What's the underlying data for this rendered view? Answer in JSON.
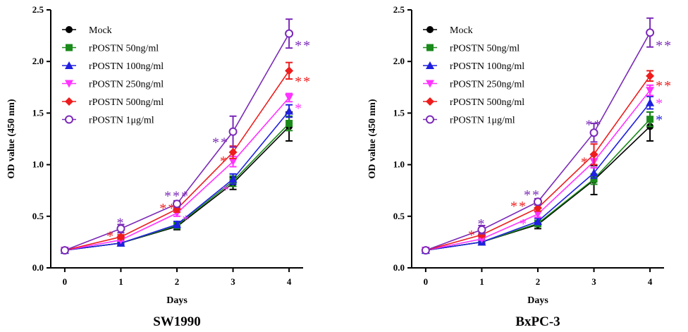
{
  "chart_data": [
    {
      "type": "line",
      "title": "SW1990",
      "xlabel": "Days",
      "ylabel": "OD value (450 nm)",
      "x": [
        0,
        1,
        2,
        3,
        4
      ],
      "xlim": [
        -0.25,
        4.25
      ],
      "ylim": [
        0,
        2.5
      ],
      "yticks": [
        0.0,
        0.5,
        1.0,
        1.5,
        2.0,
        2.5
      ],
      "ytick_labels": [
        "0.0",
        "0.5",
        "1.0",
        "1.5",
        "2.0",
        "2.5"
      ],
      "xtick_labels": [
        "0",
        "1",
        "2",
        "3",
        "4"
      ],
      "legend_position": "top-left",
      "series": [
        {
          "name": "Mock",
          "color": "#000000",
          "marker": "circle-filled",
          "values": [
            0.17,
            0.24,
            0.4,
            0.82,
            1.37
          ],
          "error": [
            0.01,
            0.01,
            0.03,
            0.06,
            0.14
          ]
        },
        {
          "name": "rPOSTN 50ng/ml",
          "color": "#1a8a1a",
          "marker": "square",
          "values": [
            0.17,
            0.24,
            0.41,
            0.84,
            1.4
          ],
          "error": [
            0.01,
            0.01,
            0.03,
            0.05,
            0.07
          ]
        },
        {
          "name": "rPOSTN 100ng/ml",
          "color": "#1f1fe0",
          "marker": "triangle-up",
          "values": [
            0.17,
            0.24,
            0.42,
            0.86,
            1.52
          ],
          "error": [
            0.01,
            0.01,
            0.03,
            0.05,
            0.06
          ]
        },
        {
          "name": "rPOSTN 250ng/ml",
          "color": "#ff33ff",
          "marker": "triangle-down",
          "values": [
            0.17,
            0.27,
            0.53,
            1.03,
            1.65
          ],
          "error": [
            0.01,
            0.01,
            0.03,
            0.05,
            0.04
          ]
        },
        {
          "name": "rPOSTN 500ng/ml",
          "color": "#ee1c1c",
          "marker": "diamond",
          "values": [
            0.17,
            0.3,
            0.57,
            1.12,
            1.91
          ],
          "error": [
            0.01,
            0.02,
            0.03,
            0.06,
            0.08
          ]
        },
        {
          "name": "rPOSTN 1μg/ml",
          "color": "#7b2ab8",
          "marker": "circle-open",
          "values": [
            0.17,
            0.38,
            0.62,
            1.32,
            2.27
          ],
          "error": [
            0.01,
            0.04,
            0.03,
            0.15,
            0.14
          ]
        }
      ],
      "annotations": [
        {
          "x": 1,
          "y": 0.46,
          "text": "*",
          "color": "#7b2ab8",
          "anchor": "middle"
        },
        {
          "x": 0.82,
          "y": 0.33,
          "text": "*",
          "color": "#ee1c1c",
          "anchor": "middle"
        },
        {
          "x": 2,
          "y": 0.72,
          "text": "***",
          "color": "#7b2ab8",
          "anchor": "middle"
        },
        {
          "x": 1.84,
          "y": 0.6,
          "text": "**",
          "color": "#ee1c1c",
          "anchor": "middle"
        },
        {
          "x": 2.17,
          "y": 0.49,
          "text": "*",
          "color": "#ff33ff",
          "anchor": "middle"
        },
        {
          "x": 2.78,
          "y": 1.24,
          "text": "**",
          "color": "#7b2ab8",
          "anchor": "middle"
        },
        {
          "x": 2.84,
          "y": 1.06,
          "text": "*",
          "color": "#ee1c1c",
          "anchor": "middle"
        },
        {
          "x": 2.88,
          "y": 0.78,
          "text": "*",
          "color": "#ff33ff",
          "anchor": "middle"
        },
        {
          "x": 4.1,
          "y": 2.18,
          "text": "**",
          "color": "#7b2ab8",
          "anchor": "start"
        },
        {
          "x": 4.1,
          "y": 1.83,
          "text": "**",
          "color": "#ee1c1c",
          "anchor": "start"
        },
        {
          "x": 4.1,
          "y": 1.57,
          "text": "*",
          "color": "#ff33ff",
          "anchor": "start"
        }
      ]
    },
    {
      "type": "line",
      "title": "BxPC-3",
      "xlabel": "Days",
      "ylabel": "OD value (450 nm)",
      "x": [
        0,
        1,
        2,
        3,
        4
      ],
      "xlim": [
        -0.25,
        4.25
      ],
      "ylim": [
        0,
        2.5
      ],
      "yticks": [
        0.0,
        0.5,
        1.0,
        1.5,
        2.0,
        2.5
      ],
      "ytick_labels": [
        "0.0",
        "0.5",
        "1.0",
        "1.5",
        "2.0",
        "2.5"
      ],
      "xtick_labels": [
        "0",
        "1",
        "2",
        "3",
        "4"
      ],
      "legend_position": "top-left",
      "series": [
        {
          "name": "Mock",
          "color": "#000000",
          "marker": "circle-filled",
          "values": [
            0.17,
            0.25,
            0.42,
            0.85,
            1.37
          ],
          "error": [
            0.01,
            0.01,
            0.04,
            0.14,
            0.14
          ]
        },
        {
          "name": "rPOSTN 50ng/ml",
          "color": "#1a8a1a",
          "marker": "square",
          "values": [
            0.17,
            0.25,
            0.43,
            0.86,
            1.44
          ],
          "error": [
            0.01,
            0.01,
            0.03,
            0.05,
            0.07
          ]
        },
        {
          "name": "rPOSTN 100ng/ml",
          "color": "#1f1fe0",
          "marker": "triangle-up",
          "values": [
            0.17,
            0.25,
            0.45,
            0.92,
            1.6
          ],
          "error": [
            0.01,
            0.01,
            0.03,
            0.05,
            0.06
          ]
        },
        {
          "name": "rPOSTN 250ng/ml",
          "color": "#ff33ff",
          "marker": "triangle-down",
          "values": [
            0.17,
            0.28,
            0.52,
            1.03,
            1.72
          ],
          "error": [
            0.01,
            0.01,
            0.03,
            0.06,
            0.05
          ]
        },
        {
          "name": "rPOSTN 500ng/ml",
          "color": "#ee1c1c",
          "marker": "diamond",
          "values": [
            0.17,
            0.32,
            0.58,
            1.1,
            1.86
          ],
          "error": [
            0.01,
            0.02,
            0.03,
            0.1,
            0.05
          ]
        },
        {
          "name": "rPOSTN 1μg/ml",
          "color": "#7b2ab8",
          "marker": "circle-open",
          "values": [
            0.17,
            0.37,
            0.64,
            1.31,
            2.28
          ],
          "error": [
            0.01,
            0.04,
            0.03,
            0.09,
            0.14
          ]
        }
      ],
      "annotations": [
        {
          "x": 1,
          "y": 0.45,
          "text": "*",
          "color": "#7b2ab8",
          "anchor": "middle"
        },
        {
          "x": 0.83,
          "y": 0.34,
          "text": "*",
          "color": "#ee1c1c",
          "anchor": "middle"
        },
        {
          "x": 1.9,
          "y": 0.73,
          "text": "**",
          "color": "#7b2ab8",
          "anchor": "middle"
        },
        {
          "x": 1.66,
          "y": 0.62,
          "text": "**",
          "color": "#ee1c1c",
          "anchor": "middle"
        },
        {
          "x": 1.75,
          "y": 0.45,
          "text": "*",
          "color": "#ff33ff",
          "anchor": "middle"
        },
        {
          "x": 3,
          "y": 1.41,
          "text": "**",
          "color": "#7b2ab8",
          "anchor": "middle"
        },
        {
          "x": 2.84,
          "y": 1.05,
          "text": "*",
          "color": "#ee1c1c",
          "anchor": "middle"
        },
        {
          "x": 4.1,
          "y": 2.18,
          "text": "**",
          "color": "#7b2ab8",
          "anchor": "start"
        },
        {
          "x": 4.1,
          "y": 1.79,
          "text": "**",
          "color": "#ee1c1c",
          "anchor": "start"
        },
        {
          "x": 4.1,
          "y": 1.62,
          "text": "*",
          "color": "#ff33ff",
          "anchor": "start"
        },
        {
          "x": 4.1,
          "y": 1.46,
          "text": "*",
          "color": "#1f1fe0",
          "anchor": "start"
        }
      ]
    }
  ]
}
